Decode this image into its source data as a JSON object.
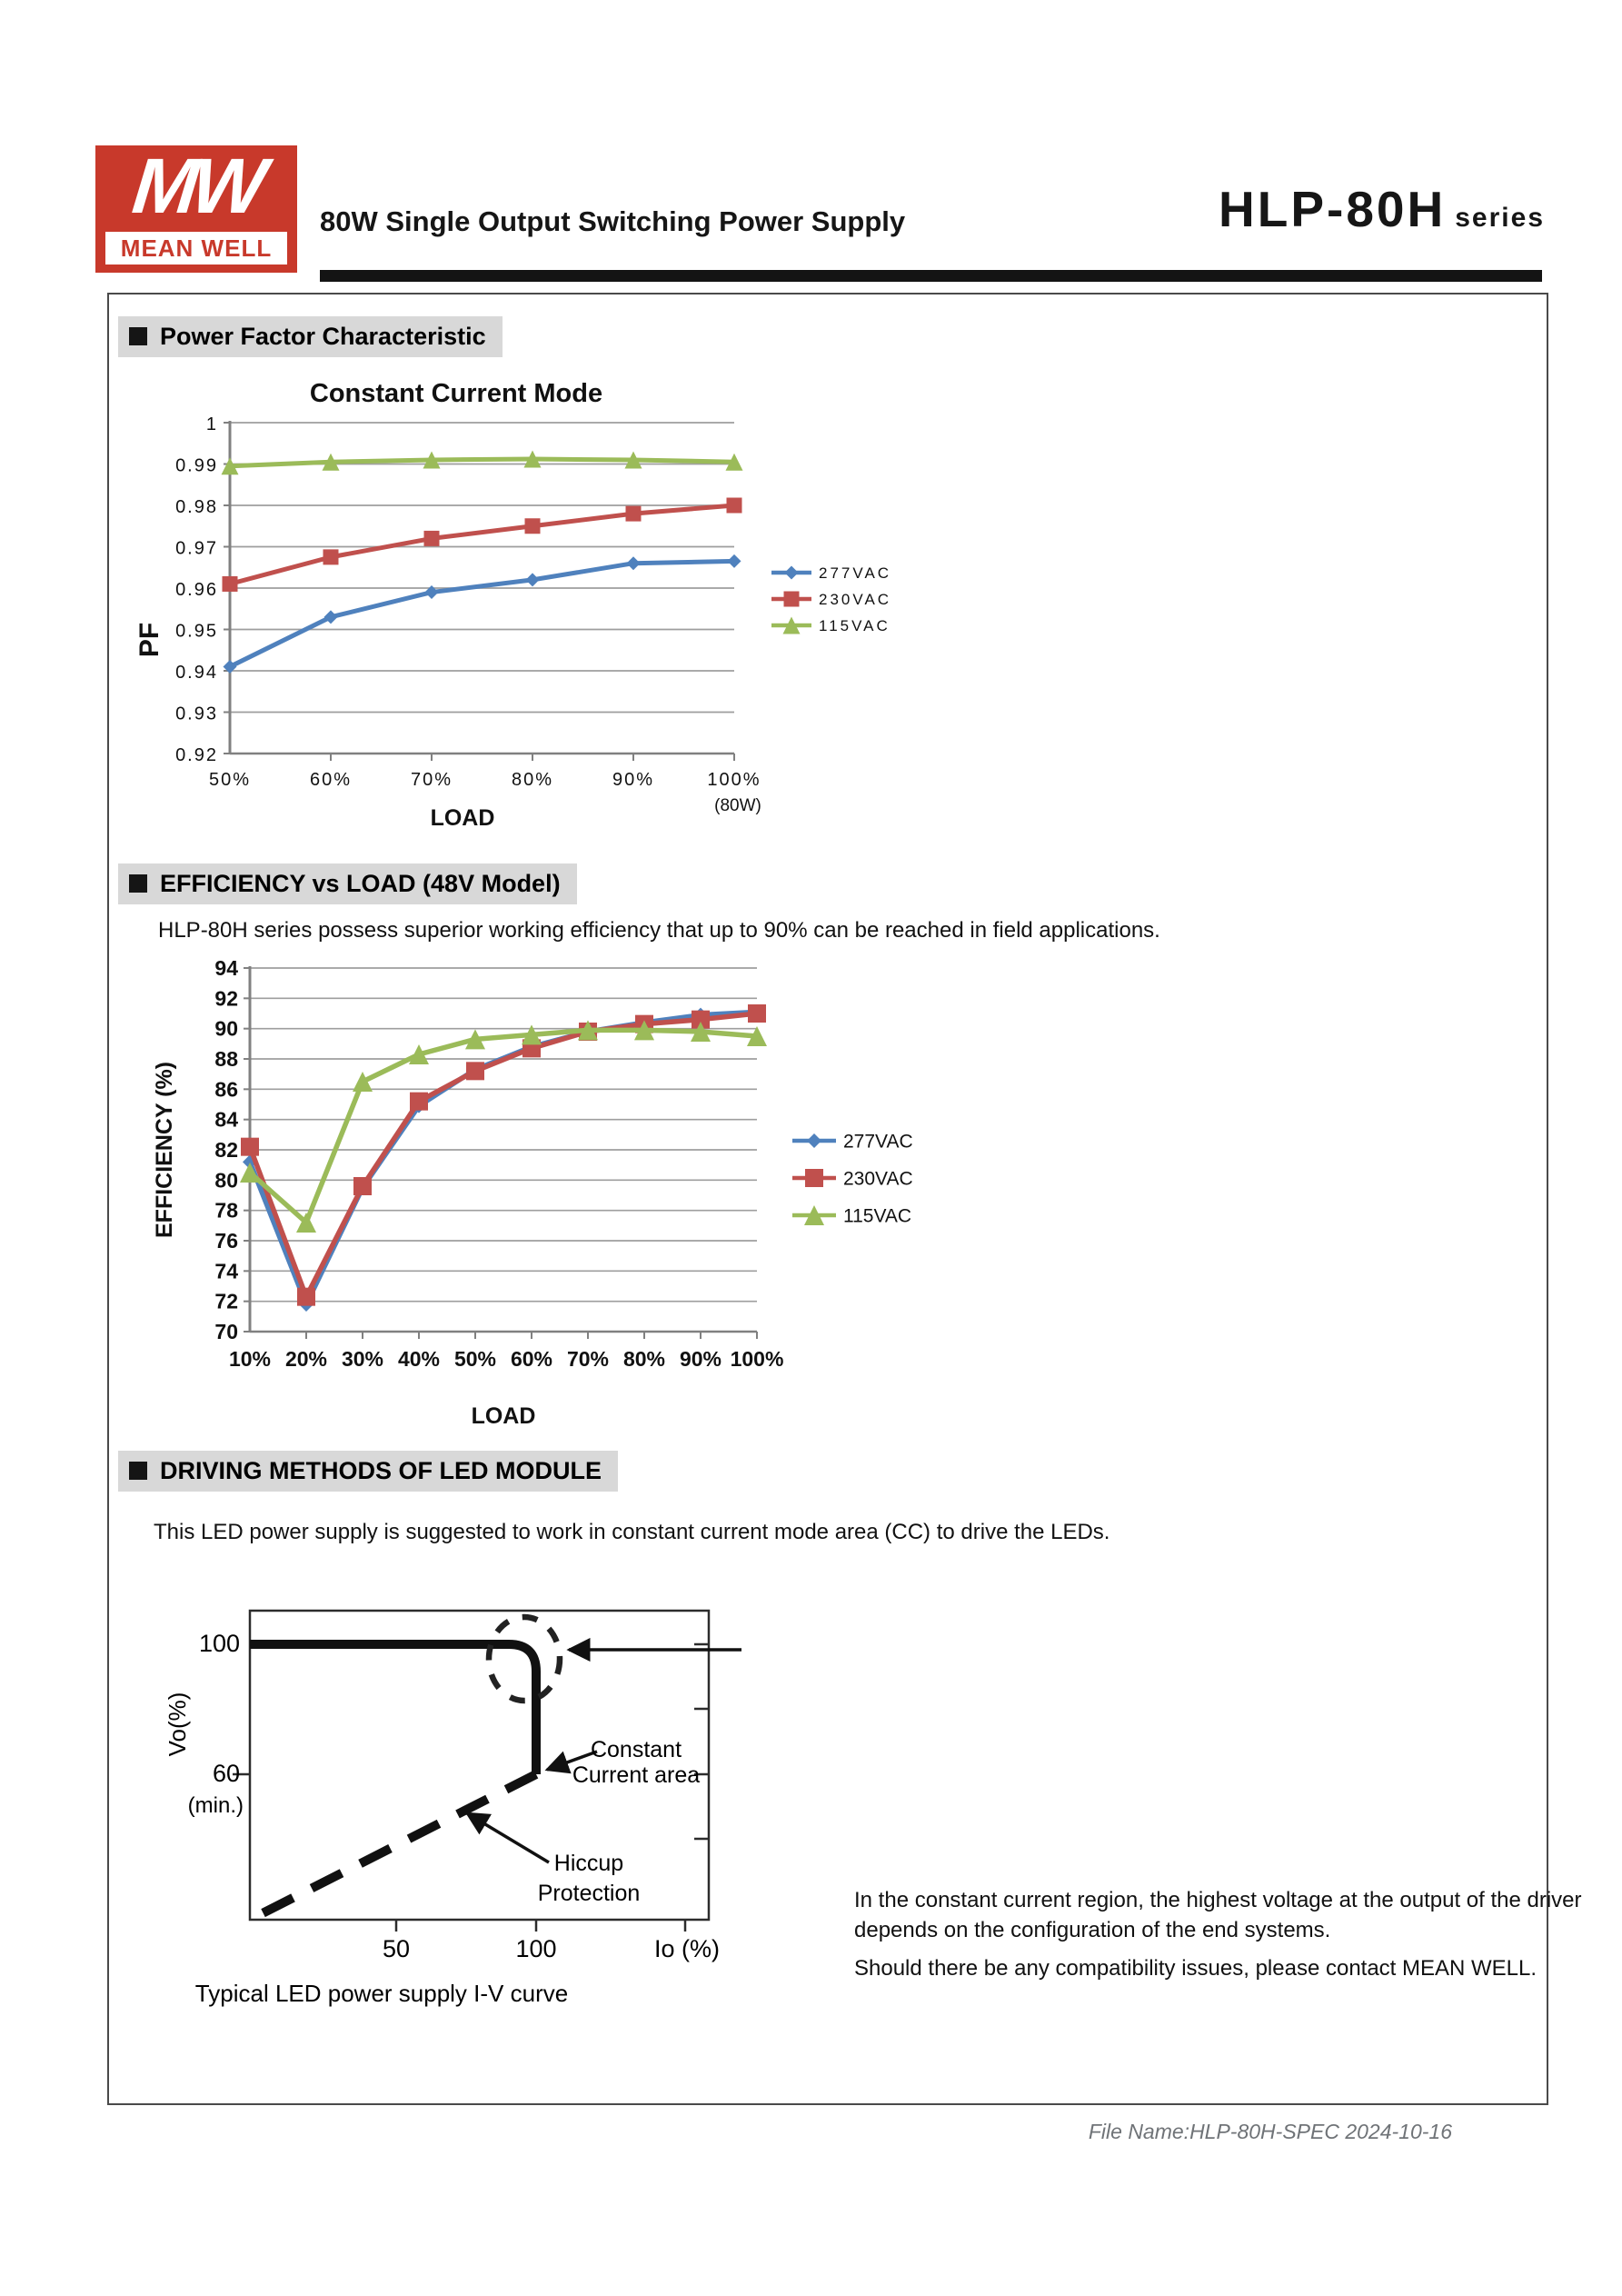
{
  "header": {
    "logo": {
      "mw": "MW",
      "brand": "MEAN WELL"
    },
    "subtitle": "80W Single Output Switching Power Supply",
    "series_name": "HLP-80H",
    "series_suffix": "series"
  },
  "sections": {
    "pf": {
      "title": "Power Factor Characteristic"
    },
    "eff": {
      "title": "EFFICIENCY vs LOAD (48V Model)",
      "description": "HLP-80H series possess superior working efficiency that up to 90% can be reached in field applications."
    },
    "drv": {
      "title": "DRIVING METHODS OF LED MODULE",
      "description": "This LED power supply is suggested to work in constant current mode area (CC) to drive the LEDs.",
      "note_lines": [
        "In the constant current region, the highest voltage at the output of the driver",
        "depends on the configuration of the end systems.",
        "Should there be any compatibility issues, please contact MEAN WELL."
      ]
    }
  },
  "chart_data": [
    {
      "type": "line",
      "title": "Constant Current Mode",
      "xlabel": "LOAD",
      "ylabel": "PF",
      "x_annotation": "(80W)",
      "categories": [
        "50%",
        "60%",
        "70%",
        "80%",
        "90%",
        "100%"
      ],
      "ylim": [
        0.92,
        1.0
      ],
      "ytick_step": 0.01,
      "grid": true,
      "legend_position": "right",
      "series": [
        {
          "name": "277VAC",
          "color": "#4F81BD",
          "marker": "diamond",
          "values": [
            0.941,
            0.953,
            0.959,
            0.962,
            0.966,
            0.9665
          ]
        },
        {
          "name": "230VAC",
          "color": "#C0504D",
          "marker": "square",
          "values": [
            0.961,
            0.9675,
            0.972,
            0.975,
            0.978,
            0.98
          ]
        },
        {
          "name": "115VAC",
          "color": "#9BBB59",
          "marker": "triangle",
          "values": [
            0.9895,
            0.9905,
            0.991,
            0.9912,
            0.991,
            0.9905
          ]
        }
      ]
    },
    {
      "type": "line",
      "title": "",
      "xlabel": "LOAD",
      "ylabel": "EFFICIENCY (%)",
      "categories": [
        "10%",
        "20%",
        "30%",
        "40%",
        "50%",
        "60%",
        "70%",
        "80%",
        "90%",
        "100%"
      ],
      "ylim": [
        70,
        94
      ],
      "ytick_step": 2,
      "grid": true,
      "legend_position": "right",
      "series": [
        {
          "name": "277VAC",
          "color": "#4F81BD",
          "marker": "diamond",
          "values": [
            81.2,
            71.8,
            79.5,
            84.9,
            87.3,
            88.8,
            89.8,
            90.4,
            90.9,
            91.1
          ]
        },
        {
          "name": "230VAC",
          "color": "#C0504D",
          "marker": "square",
          "values": [
            82.2,
            72.3,
            79.6,
            85.2,
            87.2,
            88.7,
            89.8,
            90.3,
            90.6,
            91.0
          ]
        },
        {
          "name": "115VAC",
          "color": "#9BBB59",
          "marker": "triangle",
          "values": [
            80.5,
            77.2,
            86.5,
            88.3,
            89.3,
            89.6,
            89.9,
            89.9,
            89.8,
            89.5
          ]
        }
      ]
    },
    {
      "type": "diagram",
      "name": "typical-led-iv-curve",
      "ylabel": "Vo(%)",
      "xlabel": "Io (%)",
      "yticks": [
        "100",
        "60",
        "(min.)"
      ],
      "xticks": [
        "50",
        "100"
      ],
      "annotations": [
        {
          "lines": [
            "Constant",
            "Current area"
          ]
        },
        {
          "lines": [
            "Hiccup",
            "Protection"
          ]
        }
      ],
      "caption": "Typical LED power supply I-V curve"
    }
  ],
  "footer": {
    "file_info": "File Name:HLP-80H-SPEC  2024-10-16"
  }
}
